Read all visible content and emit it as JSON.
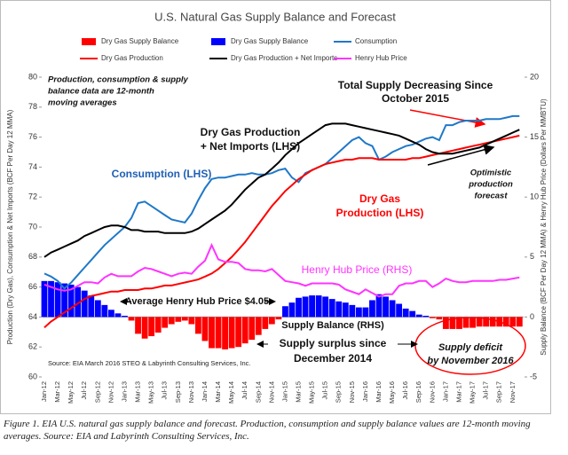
{
  "chart_data": {
    "type": "combo",
    "title": "U.S. Natural Gas Supply Balance and Forecast",
    "y_label": "Production (Dry Gas), Consumption & Net Imports (BCF Per Day 12 MMA)",
    "y2_label": "Supply Balance (BCF Per Day 12 MMA) & Henry Hub Price (Dollars Per MMBTU)",
    "ylim": [
      60,
      80
    ],
    "yticks": [
      60,
      62,
      64,
      66,
      68,
      70,
      72,
      74,
      76,
      78,
      80
    ],
    "y2lim": [
      -5,
      20
    ],
    "y2ticks": [
      -5,
      0,
      5,
      10,
      15,
      20
    ],
    "grid": false,
    "categories": [
      "Jan-12",
      null,
      "Mar-12",
      null,
      "May-12",
      null,
      "Jul-12",
      null,
      "Sep-12",
      null,
      "Nov-12",
      null,
      "Jan-13",
      null,
      "Mar-13",
      null,
      "May-13",
      null,
      "Jul-13",
      null,
      "Sep-13",
      null,
      "Nov-13",
      null,
      "Jan-14",
      null,
      "Mar-14",
      null,
      "May-14",
      null,
      "Jul-14",
      null,
      "Sep-14",
      null,
      "Nov-14",
      null,
      "Jan-15",
      null,
      "Mar-15",
      null,
      "May-15",
      null,
      "Jul-15",
      null,
      "Sep-15",
      null,
      "Nov-15",
      null,
      "Jan-16",
      null,
      "Mar-16",
      null,
      "May-16",
      null,
      "Jul-16",
      null,
      "Sep-16",
      null,
      "Nov-16",
      null,
      "Jan-17",
      null,
      "Mar-17",
      null,
      "May-17",
      null,
      "Jul-17",
      null,
      "Sep-17",
      null,
      "Nov-17",
      null
    ],
    "series": [
      {
        "name": "Dry Gas Supply Balance",
        "kind": "bar",
        "axis": "y2",
        "color": "#ff0000",
        "values": [
          null,
          null,
          null,
          null,
          null,
          null,
          null,
          null,
          null,
          null,
          null,
          null,
          null,
          -0.3,
          -1.4,
          -1.8,
          -1.6,
          -1.3,
          -0.9,
          -0.6,
          -0.4,
          -0.3,
          -0.6,
          -1.4,
          -2.0,
          -2.6,
          -2.6,
          -2.7,
          -2.6,
          -2.5,
          -2.2,
          -1.9,
          -1.5,
          -1.0,
          -0.6,
          -0.2,
          null,
          null,
          null,
          null,
          null,
          null,
          null,
          null,
          null,
          null,
          null,
          null,
          null,
          null,
          null,
          null,
          null,
          null,
          null,
          null,
          null,
          null,
          -0.1,
          -0.2,
          -1.0,
          -1.0,
          -1.0,
          -0.9,
          -0.9,
          -0.8,
          -0.8,
          -0.8,
          -0.8,
          -0.8,
          -0.8,
          -0.8
        ]
      },
      {
        "name": "Dry Gas Supply Balance",
        "kind": "bar",
        "axis": "y2",
        "color": "#0000ff",
        "values": [
          3.0,
          3.0,
          2.9,
          2.8,
          2.7,
          2.5,
          2.2,
          1.8,
          1.4,
          1.0,
          0.6,
          0.3,
          0.1,
          null,
          null,
          null,
          null,
          null,
          null,
          null,
          null,
          null,
          null,
          null,
          null,
          null,
          null,
          null,
          null,
          null,
          null,
          null,
          null,
          null,
          null,
          null,
          0.9,
          1.2,
          1.6,
          1.7,
          1.8,
          1.8,
          1.7,
          1.5,
          1.3,
          1.2,
          1.0,
          0.8,
          0.8,
          1.4,
          1.9,
          1.7,
          1.4,
          1.1,
          0.7,
          0.5,
          0.2,
          0.1,
          null,
          null,
          null,
          null,
          null,
          null,
          null,
          null,
          null,
          null,
          null,
          null,
          null,
          null
        ]
      },
      {
        "name": "Consumption",
        "kind": "line",
        "color": "#1f78c8",
        "values": [
          66.9,
          66.7,
          66.4,
          65.9,
          66.3,
          66.8,
          67.3,
          67.8,
          68.3,
          68.8,
          69.2,
          69.6,
          70.0,
          70.6,
          71.6,
          71.7,
          71.4,
          71.1,
          70.8,
          70.5,
          70.4,
          70.3,
          70.9,
          71.8,
          72.6,
          73.2,
          73.3,
          73.3,
          73.4,
          73.5,
          73.5,
          73.6,
          73.5,
          73.5,
          73.6,
          73.8,
          73.9,
          73.3,
          73.0,
          73.6,
          73.8,
          74.0,
          74.2,
          74.6,
          75.0,
          75.4,
          75.8,
          76.0,
          75.6,
          75.4,
          74.5,
          74.7,
          75.0,
          75.2,
          75.4,
          75.5,
          75.7,
          75.9,
          76.0,
          75.8,
          76.8,
          76.8,
          77.0,
          77.1,
          77.1,
          77.1,
          77.2,
          77.2,
          77.2,
          77.3,
          77.4,
          77.4
        ]
      },
      {
        "name": "Dry Gas Production",
        "kind": "line",
        "color": "#ff0000",
        "values": [
          63.3,
          63.7,
          64.0,
          64.3,
          64.6,
          64.9,
          65.2,
          65.4,
          65.5,
          65.6,
          65.7,
          65.7,
          65.8,
          65.8,
          65.8,
          65.9,
          65.9,
          66.0,
          66.1,
          66.1,
          66.2,
          66.3,
          66.4,
          66.5,
          66.7,
          66.9,
          67.2,
          67.6,
          68.0,
          68.5,
          69.0,
          69.6,
          70.2,
          70.8,
          71.4,
          71.9,
          72.4,
          72.8,
          73.2,
          73.5,
          73.8,
          74.0,
          74.2,
          74.3,
          74.4,
          74.5,
          74.5,
          74.6,
          74.6,
          74.6,
          74.5,
          74.5,
          74.5,
          74.5,
          74.5,
          74.6,
          74.6,
          74.7,
          74.8,
          74.9,
          75.0,
          75.1,
          75.2,
          75.3,
          75.4,
          75.5,
          75.6,
          75.7,
          75.8,
          75.9,
          76.0,
          76.1
        ]
      },
      {
        "name": "Dry Gas Production + Net Imports",
        "kind": "line",
        "color": "#000000",
        "values": [
          68.0,
          68.3,
          68.5,
          68.7,
          68.9,
          69.1,
          69.4,
          69.6,
          69.8,
          70.0,
          70.1,
          70.1,
          70.0,
          69.8,
          69.8,
          69.7,
          69.7,
          69.7,
          69.6,
          69.6,
          69.6,
          69.6,
          69.7,
          69.9,
          70.2,
          70.5,
          70.8,
          71.1,
          71.5,
          72.0,
          72.5,
          72.9,
          73.3,
          73.5,
          73.9,
          74.3,
          74.8,
          75.2,
          75.6,
          75.9,
          76.2,
          76.5,
          76.8,
          76.9,
          76.9,
          76.9,
          76.8,
          76.7,
          76.6,
          76.5,
          76.4,
          76.3,
          76.2,
          76.1,
          75.9,
          75.7,
          75.5,
          75.2,
          75.0,
          74.9,
          74.9,
          74.9,
          75.0,
          75.1,
          75.2,
          75.3,
          75.5,
          75.7,
          75.9,
          76.1,
          76.3,
          76.5
        ]
      },
      {
        "name": "Henry Hub Price",
        "kind": "line",
        "axis": "y2",
        "color": "#ff33ff",
        "values": [
          2.7,
          2.5,
          2.3,
          2.2,
          2.3,
          2.6,
          2.9,
          2.9,
          2.8,
          3.3,
          3.6,
          3.4,
          3.4,
          3.4,
          3.8,
          4.1,
          4.0,
          3.8,
          3.6,
          3.4,
          3.6,
          3.7,
          3.6,
          4.2,
          4.7,
          6.0,
          4.8,
          4.6,
          4.6,
          4.5,
          4.0,
          3.9,
          3.9,
          3.8,
          4.0,
          3.5,
          3.0,
          2.9,
          2.8,
          2.6,
          2.8,
          2.8,
          2.8,
          2.8,
          2.7,
          2.3,
          2.1,
          1.9,
          2.3,
          2.0,
          1.7,
          1.9,
          1.9,
          2.6,
          2.8,
          2.8,
          3.0,
          3.0,
          2.5,
          2.8,
          3.2,
          3.0,
          2.9,
          2.9,
          3.0,
          3.0,
          3.0,
          3.0,
          3.1,
          3.1,
          3.2,
          3.3
        ]
      }
    ],
    "annotations": [
      [
        "Production, consumption & supply",
        "balance  data are 12-month",
        "moving averages"
      ],
      [
        "Total Supply Decreasing Since",
        "October 2015"
      ],
      [
        "Dry Gas Production",
        "+ Net Imports (LHS)"
      ],
      [
        "Consumption (LHS)"
      ],
      [
        "Dry Gas",
        "Production (LHS)"
      ],
      [
        "Optimistic",
        "production",
        "forecast"
      ],
      [
        "Henry Hub Price (RHS)"
      ],
      [
        "Average Henry Hub Price $4.05"
      ],
      [
        "Supply Balance (RHS)"
      ],
      [
        "Supply surplus since",
        "December 2014"
      ],
      [
        "Supply deficit",
        "by November 2016"
      ],
      [
        "Source: EIA March 2016 STEO & Labyrinth Consulting Services, Inc."
      ]
    ]
  },
  "caption": "Figure 1. EIA U.S. natural gas supply balance and forecast. Production, consumption and supply balance values are 12-month moving averages. Source: EIA and Labyrinth Consulting Services, Inc."
}
